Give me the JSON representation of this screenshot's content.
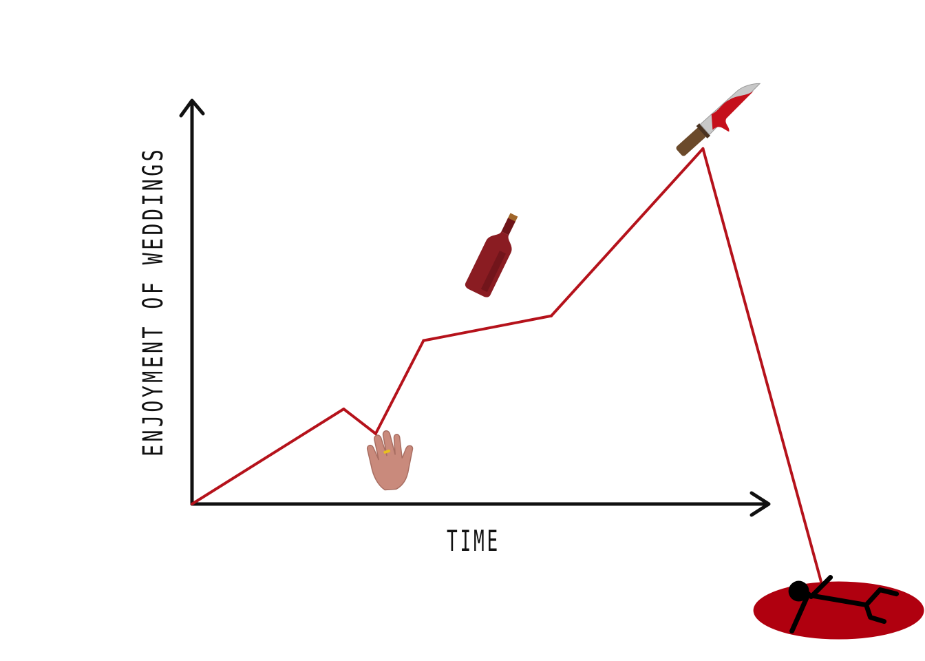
{
  "chart_data": {
    "type": "line",
    "title": "",
    "xlabel": "TIME",
    "ylabel": "ENJOYMENT OF WEDDINGS",
    "xlim": [
      0,
      100
    ],
    "ylim": [
      -25,
      100
    ],
    "grid": false,
    "series": [
      {
        "x": [
          0,
          19,
          23,
          29,
          45,
          64,
          79
        ],
        "y": [
          0,
          25,
          18.5,
          43,
          49.5,
          93.5,
          -22
        ]
      }
    ],
    "annotations": [
      {
        "icon": "hand-with-ring-icon",
        "x": 25,
        "y": 10
      },
      {
        "icon": "wine-bottle-icon",
        "x": 38,
        "y": 66
      },
      {
        "icon": "bloody-knife-icon",
        "x": 65,
        "y": 100
      },
      {
        "icon": "dead-stick-figure-in-blood-pool-icon",
        "x": 81,
        "y": -28
      }
    ]
  },
  "colors": {
    "line": "#b5121b",
    "axis": "#111111",
    "blood": "#b0000f",
    "wine": "#8a1c22",
    "skin": "#c98a7c",
    "knife_handle": "#6b4a2b",
    "blade": "#c8c8c8"
  }
}
